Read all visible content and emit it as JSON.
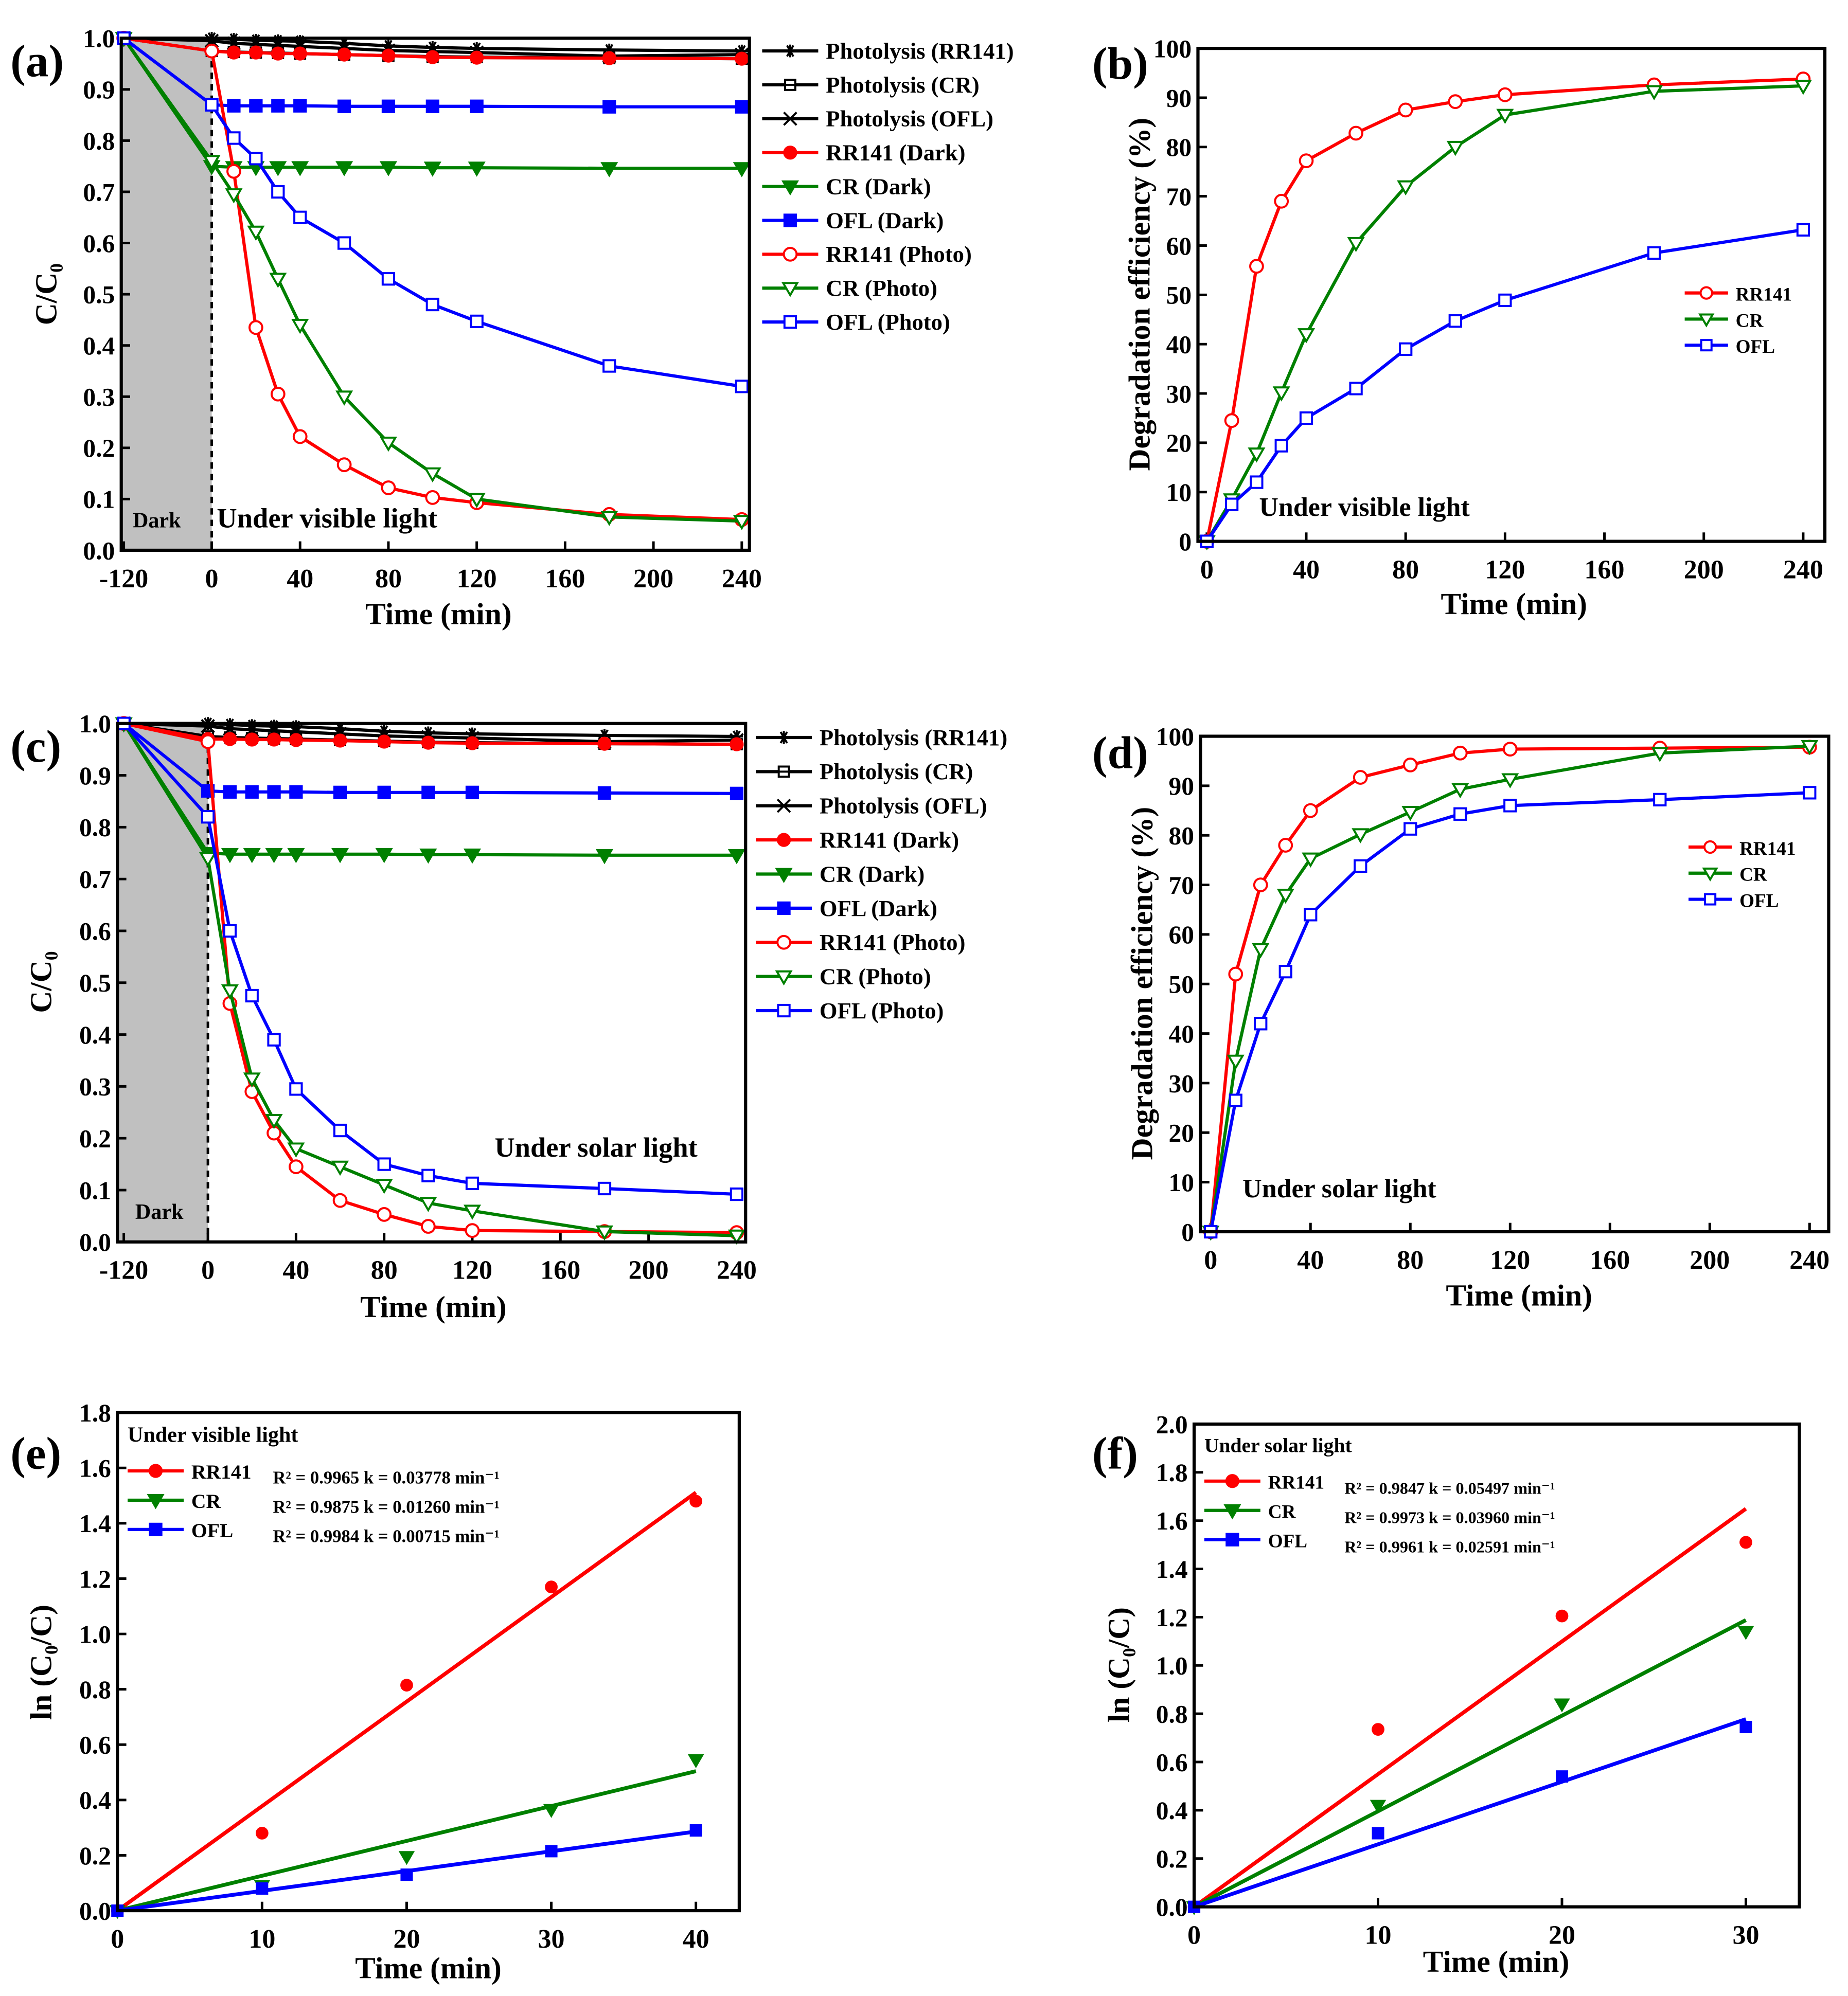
{
  "chart_data": [
    {
      "panel": "(a)",
      "type": "line",
      "xlabel": "Time (min)",
      "ylabel": "C/C₀",
      "xticks": [
        -120,
        0,
        40,
        80,
        120,
        160,
        200,
        240
      ],
      "yticks": [
        0.0,
        0.1,
        0.2,
        0.3,
        0.4,
        0.5,
        0.6,
        0.7,
        0.8,
        0.9,
        1.0
      ],
      "xlim": [
        -120,
        250
      ],
      "ylim": [
        0,
        1.0
      ],
      "annotations": [
        "Dark",
        "Under visible light"
      ],
      "legend_position": "right-outside",
      "x": [
        -120,
        0,
        10,
        20,
        30,
        40,
        60,
        80,
        100,
        120,
        180,
        240
      ],
      "series": [
        {
          "name": "Photolysis (RR141)",
          "color": "#000000",
          "marker": "asterisk",
          "values": [
            1.0,
            1.0,
            0.998,
            0.996,
            0.995,
            0.994,
            0.99,
            0.985,
            0.982,
            0.98,
            0.977,
            0.975
          ]
        },
        {
          "name": "Photolysis (CR)",
          "color": "#000000",
          "marker": "square-cross",
          "values": [
            1.0,
            0.975,
            0.973,
            0.972,
            0.971,
            0.97,
            0.968,
            0.966,
            0.964,
            0.963,
            0.961,
            0.96
          ]
        },
        {
          "name": "Photolysis (OFL)",
          "color": "#000000",
          "marker": "x-star",
          "values": [
            1.0,
            0.995,
            0.99,
            0.988,
            0.986,
            0.984,
            0.98,
            0.976,
            0.974,
            0.972,
            0.965,
            0.968
          ]
        },
        {
          "name": "RR141 (Dark)",
          "color": "#ff0000",
          "marker": "circle-filled",
          "values": [
            1.0,
            0.975,
            0.972,
            0.972,
            0.97,
            0.97,
            0.968,
            0.966,
            0.963,
            0.962,
            0.961,
            0.96
          ]
        },
        {
          "name": "CR (Dark)",
          "color": "#008000",
          "marker": "tri-filled",
          "values": [
            1.0,
            0.75,
            0.748,
            0.748,
            0.748,
            0.748,
            0.748,
            0.748,
            0.747,
            0.747,
            0.746,
            0.746
          ]
        },
        {
          "name": "OFL (Dark)",
          "color": "#0000ff",
          "marker": "square-filled",
          "values": [
            1.0,
            0.87,
            0.868,
            0.868,
            0.868,
            0.868,
            0.867,
            0.867,
            0.867,
            0.867,
            0.866,
            0.866
          ]
        },
        {
          "name": "RR141 (Photo)",
          "color": "#ff0000",
          "marker": "circle-open",
          "values": [
            1.0,
            0.975,
            0.74,
            0.435,
            0.305,
            0.222,
            0.167,
            0.122,
            0.103,
            0.093,
            0.07,
            0.06
          ]
        },
        {
          "name": "CR (Photo)",
          "color": "#008000",
          "marker": "tri-open",
          "values": [
            1.0,
            0.76,
            0.695,
            0.622,
            0.53,
            0.44,
            0.3,
            0.21,
            0.15,
            0.1,
            0.065,
            0.057
          ]
        },
        {
          "name": "OFL (Photo)",
          "color": "#0000ff",
          "marker": "square-open",
          "values": [
            1.0,
            0.87,
            0.805,
            0.765,
            0.7,
            0.65,
            0.6,
            0.53,
            0.48,
            0.447,
            0.36,
            0.32
          ]
        }
      ]
    },
    {
      "panel": "(b)",
      "type": "line",
      "xlabel": "Time (min)",
      "ylabel": "Degradation efficiency (%)",
      "xticks": [
        0,
        40,
        80,
        120,
        160,
        200,
        240
      ],
      "yticks": [
        0,
        10,
        20,
        30,
        40,
        50,
        60,
        70,
        80,
        90,
        100
      ],
      "xlim": [
        0,
        249
      ],
      "ylim": [
        0,
        100
      ],
      "annotations": [
        "Under visible light"
      ],
      "legend_position": "center-right",
      "x": [
        0,
        10,
        20,
        30,
        40,
        60,
        80,
        100,
        120,
        180,
        240
      ],
      "series": [
        {
          "name": "RR141",
          "color": "#ff0000",
          "marker": "circle-open",
          "values": [
            0,
            24.5,
            55.8,
            69,
            77.2,
            82.8,
            87.5,
            89.2,
            90.6,
            92.6,
            93.8
          ]
        },
        {
          "name": "CR",
          "color": "#008000",
          "marker": "tri-open",
          "values": [
            0,
            8.5,
            17.8,
            30.2,
            42,
            60.5,
            72,
            80,
            86.5,
            91.3,
            92.4
          ]
        },
        {
          "name": "OFL",
          "color": "#0000ff",
          "marker": "square-open",
          "values": [
            0,
            7.5,
            12,
            19.4,
            25,
            31,
            39,
            44.7,
            48.9,
            58.5,
            63.2
          ]
        }
      ]
    },
    {
      "panel": "(c)",
      "type": "line",
      "xlabel": "Time (min)",
      "ylabel": "C/C₀",
      "xticks": [
        -120,
        0,
        40,
        80,
        120,
        160,
        200,
        240
      ],
      "yticks": [
        0.0,
        0.1,
        0.2,
        0.3,
        0.4,
        0.5,
        0.6,
        0.7,
        0.8,
        0.9,
        1.0
      ],
      "xlim": [
        -120,
        250
      ],
      "ylim": [
        0,
        1.0
      ],
      "annotations": [
        "Dark",
        "Under solar light"
      ],
      "legend_position": "right-outside",
      "x": [
        -120,
        0,
        10,
        20,
        30,
        40,
        60,
        80,
        100,
        120,
        180,
        240
      ],
      "series": [
        {
          "name": "Photolysis (RR141)",
          "color": "#000000",
          "marker": "asterisk",
          "values": [
            1.0,
            1.0,
            0.998,
            0.996,
            0.995,
            0.994,
            0.99,
            0.985,
            0.982,
            0.98,
            0.977,
            0.975
          ]
        },
        {
          "name": "Photolysis (CR)",
          "color": "#000000",
          "marker": "square-cross",
          "values": [
            1.0,
            0.975,
            0.973,
            0.972,
            0.971,
            0.97,
            0.968,
            0.966,
            0.964,
            0.963,
            0.961,
            0.96
          ]
        },
        {
          "name": "Photolysis (OFL)",
          "color": "#000000",
          "marker": "x-star",
          "values": [
            1.0,
            0.995,
            0.99,
            0.988,
            0.986,
            0.984,
            0.98,
            0.976,
            0.974,
            0.972,
            0.965,
            0.968
          ]
        },
        {
          "name": "RR141 (Dark)",
          "color": "#ff0000",
          "marker": "circle-filled",
          "values": [
            1.0,
            0.97,
            0.97,
            0.969,
            0.969,
            0.968,
            0.967,
            0.965,
            0.963,
            0.962,
            0.961,
            0.96
          ]
        },
        {
          "name": "CR (Dark)",
          "color": "#008000",
          "marker": "tri-filled",
          "values": [
            1.0,
            0.75,
            0.748,
            0.748,
            0.748,
            0.748,
            0.748,
            0.748,
            0.747,
            0.747,
            0.746,
            0.746
          ]
        },
        {
          "name": "OFL (Dark)",
          "color": "#0000ff",
          "marker": "square-filled",
          "values": [
            1.0,
            0.87,
            0.868,
            0.868,
            0.868,
            0.868,
            0.867,
            0.867,
            0.867,
            0.867,
            0.866,
            0.865
          ]
        },
        {
          "name": "RR141 (Photo)",
          "color": "#ff0000",
          "marker": "circle-open",
          "values": [
            1.0,
            0.965,
            0.46,
            0.29,
            0.21,
            0.145,
            0.08,
            0.053,
            0.03,
            0.022,
            0.02,
            0.018
          ]
        },
        {
          "name": "CR (Photo)",
          "color": "#008000",
          "marker": "tri-open",
          "values": [
            1.0,
            0.74,
            0.485,
            0.315,
            0.235,
            0.18,
            0.145,
            0.11,
            0.075,
            0.06,
            0.02,
            0.012
          ]
        },
        {
          "name": "OFL (Photo)",
          "color": "#0000ff",
          "marker": "square-open",
          "values": [
            1.0,
            0.82,
            0.6,
            0.475,
            0.39,
            0.295,
            0.215,
            0.15,
            0.128,
            0.113,
            0.103,
            0.092
          ]
        }
      ]
    },
    {
      "panel": "(d)",
      "type": "line",
      "xlabel": "Time (min)",
      "ylabel": "Degradation efficiency (%)",
      "xticks": [
        0,
        40,
        80,
        120,
        160,
        200,
        240
      ],
      "yticks": [
        0,
        10,
        20,
        30,
        40,
        50,
        60,
        70,
        80,
        90,
        100
      ],
      "xlim": [
        0,
        249
      ],
      "ylim": [
        0,
        100
      ],
      "annotations": [
        "Under solar light"
      ],
      "legend_position": "center-right",
      "x": [
        0,
        10,
        20,
        30,
        40,
        60,
        80,
        100,
        120,
        180,
        240
      ],
      "series": [
        {
          "name": "RR141",
          "color": "#ff0000",
          "marker": "circle-open",
          "values": [
            0,
            52,
            70,
            78,
            85,
            91.7,
            94.2,
            96.6,
            97.4,
            97.6,
            97.8
          ]
        },
        {
          "name": "CR",
          "color": "#008000",
          "marker": "tri-open",
          "values": [
            0,
            34.5,
            57,
            68,
            75.3,
            80.2,
            84.7,
            89.3,
            91.3,
            96.6,
            98
          ]
        },
        {
          "name": "OFL",
          "color": "#0000ff",
          "marker": "square-open",
          "values": [
            0,
            26.5,
            42,
            52.5,
            64,
            73.8,
            81.3,
            84.3,
            86,
            87.2,
            88.6
          ]
        }
      ]
    },
    {
      "panel": "(e)",
      "type": "scatter",
      "xlabel": "Time (min)",
      "ylabel": "ln (C₀/C)",
      "xticks": [
        0,
        10,
        20,
        30,
        40
      ],
      "yticks": [
        0.0,
        0.2,
        0.4,
        0.6,
        0.8,
        1.0,
        1.2,
        1.4,
        1.6,
        1.8
      ],
      "xlim": [
        0,
        43
      ],
      "ylim": [
        0,
        1.8
      ],
      "legend_title": "Under visible light",
      "legend_position": "top-left",
      "x": [
        0,
        10,
        20,
        30,
        40
      ],
      "series": [
        {
          "name": "RR141",
          "color": "#ff0000",
          "marker": "circle-filled",
          "values": [
            0,
            0.28,
            0.815,
            1.17,
            1.48
          ],
          "fit": {
            "k": 0.03778,
            "r2": 0.9965,
            "label": "R² = 0.9965 k = 0.03778 min⁻¹"
          }
        },
        {
          "name": "CR",
          "color": "#008000",
          "marker": "tri-filled",
          "values": [
            0,
            0.09,
            0.195,
            0.365,
            0.545
          ],
          "fit": {
            "k": 0.0126,
            "r2": 0.9875,
            "label": "R² = 0.9875 k = 0.01260 min⁻¹"
          }
        },
        {
          "name": "OFL",
          "color": "#0000ff",
          "marker": "square-filled",
          "values": [
            0,
            0.08,
            0.13,
            0.215,
            0.29
          ],
          "fit": {
            "k": 0.00715,
            "r2": 0.9984,
            "label": "R² = 0.9984 k = 0.00715 min⁻¹"
          }
        }
      ]
    },
    {
      "panel": "(f)",
      "type": "scatter",
      "xlabel": "Time (min)",
      "ylabel": "ln (C₀/C)",
      "xticks": [
        0,
        10,
        20,
        30
      ],
      "yticks": [
        0.0,
        0.2,
        0.4,
        0.6,
        0.8,
        1.0,
        1.2,
        1.4,
        1.6,
        1.8,
        2.0
      ],
      "xlim": [
        0,
        33
      ],
      "ylim": [
        0,
        2.0
      ],
      "legend_title": "Under solar light",
      "legend_position": "top-left",
      "x": [
        0,
        10,
        20,
        30
      ],
      "series": [
        {
          "name": "RR141",
          "color": "#ff0000",
          "marker": "circle-filled",
          "values": [
            0,
            0.735,
            1.205,
            1.51
          ],
          "fit": {
            "k": 0.05497,
            "r2": 0.9847,
            "label": "R² = 0.9847 k = 0.05497 min⁻¹"
          }
        },
        {
          "name": "CR",
          "color": "#008000",
          "marker": "tri-filled",
          "values": [
            0,
            0.42,
            0.84,
            1.14
          ],
          "fit": {
            "k": 0.0396,
            "r2": 0.9973,
            "label": "R² = 0.9973 k = 0.03960 min⁻¹"
          }
        },
        {
          "name": "OFL",
          "color": "#0000ff",
          "marker": "square-filled",
          "values": [
            0,
            0.305,
            0.54,
            0.745
          ],
          "fit": {
            "k": 0.02591,
            "r2": 0.9961,
            "label": "R² = 0.9961 k = 0.02591 min⁻¹"
          }
        }
      ]
    }
  ]
}
